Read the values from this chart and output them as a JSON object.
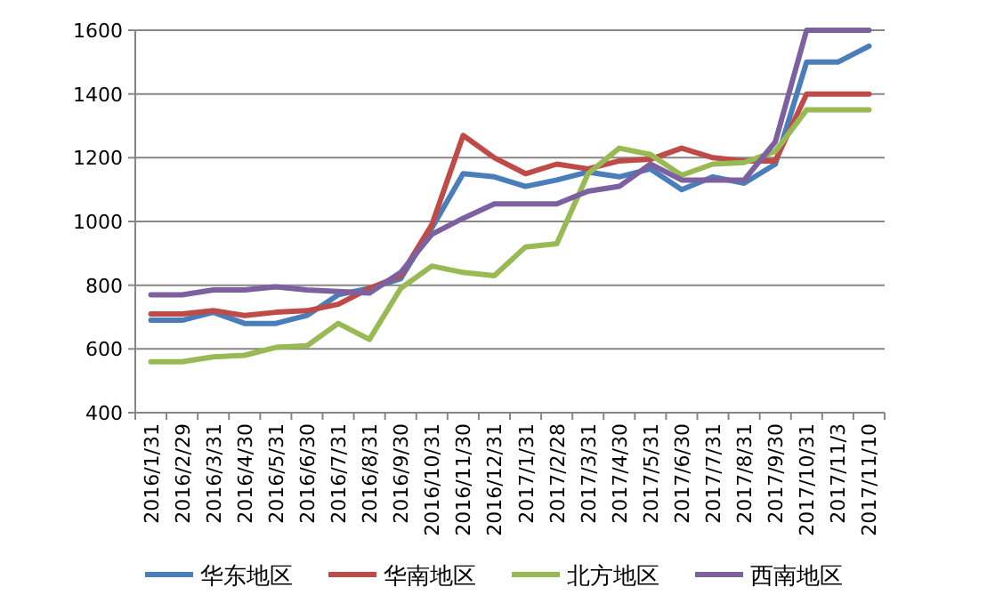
{
  "chart_data": {
    "type": "line",
    "categories": [
      "2016/1/31",
      "2016/2/29",
      "2016/3/31",
      "2016/4/30",
      "2016/5/31",
      "2016/6/30",
      "2016/7/31",
      "2016/8/31",
      "2016/9/30",
      "2016/10/31",
      "2016/11/30",
      "2016/12/31",
      "2017/1/31",
      "2017/2/28",
      "2017/3/31",
      "2017/4/30",
      "2017/5/31",
      "2017/6/30",
      "2017/7/31",
      "2017/8/31",
      "2017/9/30",
      "2017/10/31",
      "2017/11/3",
      "2017/11/10"
    ],
    "series": [
      {
        "name": "华东地区",
        "color": "#4a7ebb",
        "values": [
          690,
          690,
          715,
          680,
          680,
          705,
          770,
          790,
          820,
          980,
          1150,
          1140,
          1110,
          1130,
          1155,
          1140,
          1165,
          1100,
          1140,
          1120,
          1180,
          1500,
          1500,
          1550
        ]
      },
      {
        "name": "华南地区",
        "color": "#be4b48",
        "values": [
          710,
          710,
          720,
          705,
          715,
          720,
          740,
          790,
          830,
          990,
          1270,
          1200,
          1150,
          1180,
          1165,
          1190,
          1195,
          1230,
          1200,
          1190,
          1190,
          1400,
          1400,
          1400
        ]
      },
      {
        "name": "北方地区",
        "color": "#98b954",
        "values": [
          560,
          560,
          575,
          580,
          605,
          610,
          680,
          630,
          790,
          860,
          840,
          830,
          920,
          930,
          1150,
          1230,
          1210,
          1145,
          1180,
          1185,
          1220,
          1350,
          1350,
          1350
        ]
      },
      {
        "name": "西南地区",
        "color": "#7d60a0",
        "values": [
          770,
          770,
          785,
          785,
          795,
          785,
          780,
          775,
          840,
          960,
          1010,
          1055,
          1055,
          1055,
          1095,
          1110,
          1180,
          1130,
          1130,
          1130,
          1250,
          1600,
          1600,
          1600
        ]
      }
    ],
    "ylim": [
      400,
      1600
    ],
    "yticks": [
      400,
      600,
      800,
      1000,
      1200,
      1400,
      1600
    ],
    "grid": "y",
    "legend": "bottom",
    "marker": "none",
    "line_style": "solid"
  }
}
